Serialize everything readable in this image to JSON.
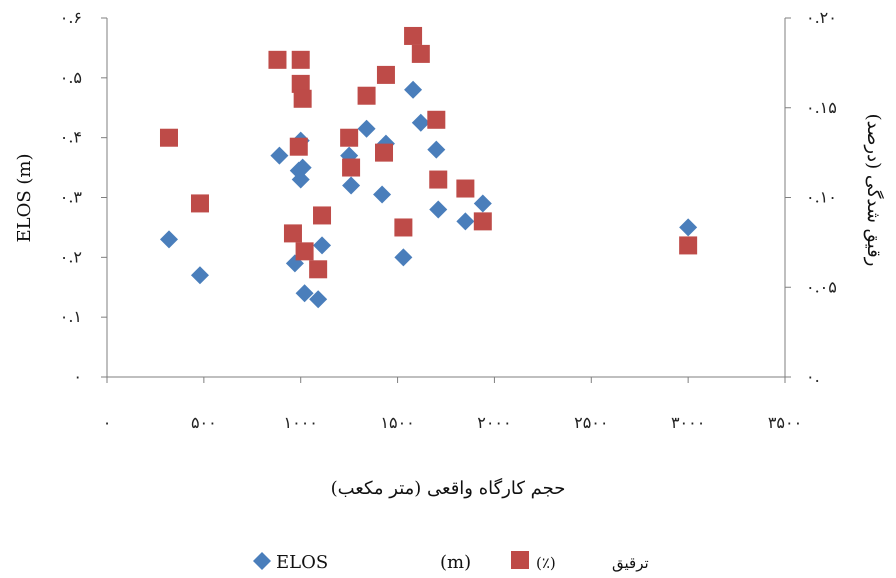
{
  "chart_data": {
    "type": "scatter",
    "xlabel": "حجم کارگاه واقعی (متر مکعب)",
    "ylabel_left": "ELOS (m)",
    "ylabel_right": "رقیق شدگی (درصد)",
    "x_tick_labels": [
      "۰",
      "۵۰۰",
      "۱۰۰۰",
      "۱۵۰۰",
      "۲۰۰۰",
      "۲۵۰۰",
      "۳۰۰۰",
      "۳۵۰۰"
    ],
    "x_ticks": [
      0,
      500,
      1000,
      1500,
      2000,
      2500,
      3000,
      3500
    ],
    "left_tick_labels": [
      "۰",
      "۰.۱",
      "۰.۲",
      "۰.۳",
      "۰.۴",
      "۰.۵",
      "۰.۶"
    ],
    "left_ticks": [
      0,
      0.1,
      0.2,
      0.3,
      0.4,
      0.5,
      0.6
    ],
    "right_tick_labels": [
      "۰.",
      "۰.۰۵",
      "۰.۱۰",
      "۰.۱۵",
      "۰.۲۰"
    ],
    "right_ticks": [
      0,
      0.05,
      0.1,
      0.15,
      0.2
    ],
    "xlim": [
      0,
      3500
    ],
    "ylim_left": [
      0,
      0.6
    ],
    "ylim_right": [
      0,
      0.2
    ],
    "grid": false,
    "legend_position": "bottom",
    "legend": {
      "elos_label": "ELOS",
      "elos_unit": "(m)",
      "dilution_unit": "(٪)",
      "dilution_label": "ترقیق"
    },
    "series": [
      {
        "name": "ELOS (m)",
        "axis": "left",
        "marker": "diamond",
        "color": "#4A7EBB",
        "points": [
          [
            320,
            0.23
          ],
          [
            480,
            0.17
          ],
          [
            890,
            0.37
          ],
          [
            970,
            0.19
          ],
          [
            990,
            0.345
          ],
          [
            1000,
            0.33
          ],
          [
            1000,
            0.395
          ],
          [
            1010,
            0.35
          ],
          [
            1020,
            0.14
          ],
          [
            1090,
            0.13
          ],
          [
            1110,
            0.22
          ],
          [
            1250,
            0.37
          ],
          [
            1260,
            0.32
          ],
          [
            1340,
            0.415
          ],
          [
            1420,
            0.305
          ],
          [
            1440,
            0.39
          ],
          [
            1530,
            0.2
          ],
          [
            1580,
            0.48
          ],
          [
            1620,
            0.425
          ],
          [
            1700,
            0.38
          ],
          [
            1710,
            0.28
          ],
          [
            1850,
            0.26
          ],
          [
            1940,
            0.29
          ],
          [
            3000,
            0.25
          ]
        ]
      },
      {
        "name": "(٪) ترقیق",
        "axis": "right",
        "marker": "square",
        "color": "#BE4B48",
        "points": [
          [
            320,
            0.1333
          ],
          [
            480,
            0.0967
          ],
          [
            880,
            0.1767
          ],
          [
            960,
            0.08
          ],
          [
            990,
            0.1283
          ],
          [
            1000,
            0.1767
          ],
          [
            1000,
            0.1633
          ],
          [
            1010,
            0.155
          ],
          [
            1020,
            0.07
          ],
          [
            1090,
            0.06
          ],
          [
            1110,
            0.09
          ],
          [
            1250,
            0.1333
          ],
          [
            1260,
            0.1167
          ],
          [
            1340,
            0.1567
          ],
          [
            1430,
            0.125
          ],
          [
            1440,
            0.1683
          ],
          [
            1530,
            0.0833
          ],
          [
            1580,
            0.19
          ],
          [
            1620,
            0.18
          ],
          [
            1700,
            0.1433
          ],
          [
            1710,
            0.11
          ],
          [
            1850,
            0.105
          ],
          [
            1940,
            0.0867
          ],
          [
            3000,
            0.0733
          ]
        ]
      }
    ],
    "colors": {
      "elos": "#4A7EBB",
      "dilution": "#BE4B48",
      "axis": "#7f7f7f"
    }
  }
}
